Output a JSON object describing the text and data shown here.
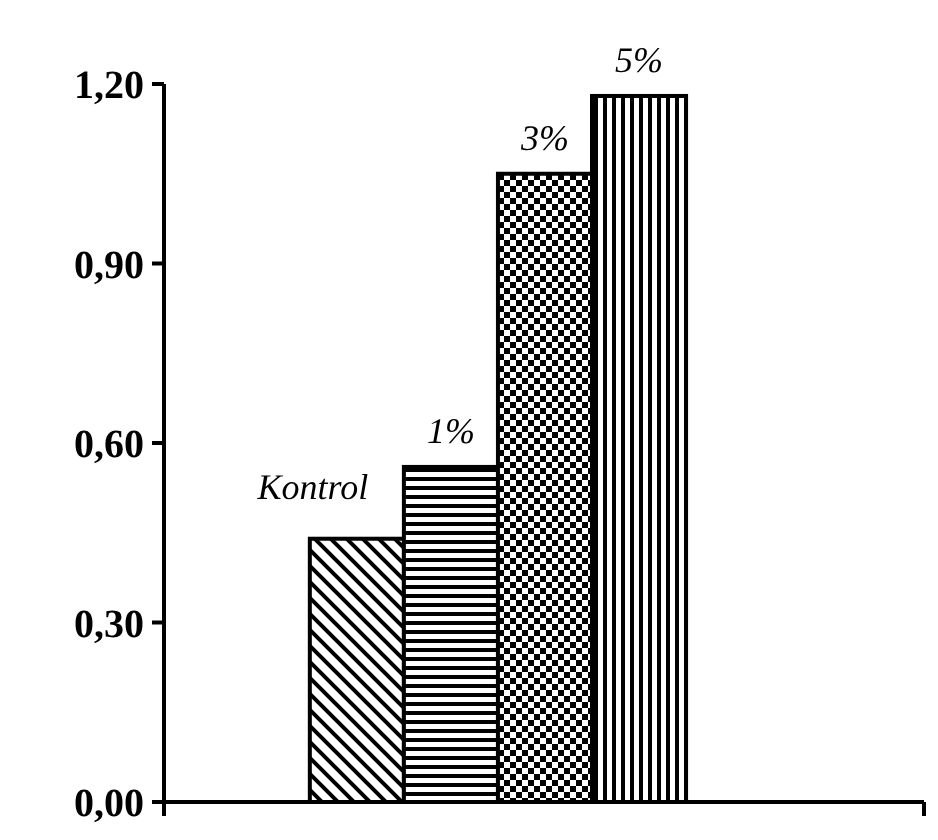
{
  "chart_data": {
    "type": "bar",
    "categories": [
      null
    ],
    "series": [
      {
        "name": "Kontrol",
        "color": "#000000",
        "values": [
          0.44
        ]
      },
      {
        "name": "1%",
        "color": "#000000",
        "values": [
          0.56
        ]
      },
      {
        "name": "3%",
        "color": "#000000",
        "values": [
          1.05
        ]
      },
      {
        "name": "5%",
        "color": "#000000",
        "values": [
          1.18
        ]
      }
    ],
    "ylim": [
      0,
      1.2
    ],
    "yticks": [
      {
        "value": 0,
        "label": "0,00"
      },
      {
        "value": 0.3,
        "label": "0,30"
      },
      {
        "value": 0.6,
        "label": "0,60"
      },
      {
        "value": 0.9,
        "label": "0,90"
      },
      {
        "value": 1.2,
        "label": "1,20"
      }
    ],
    "grid": false
  }
}
